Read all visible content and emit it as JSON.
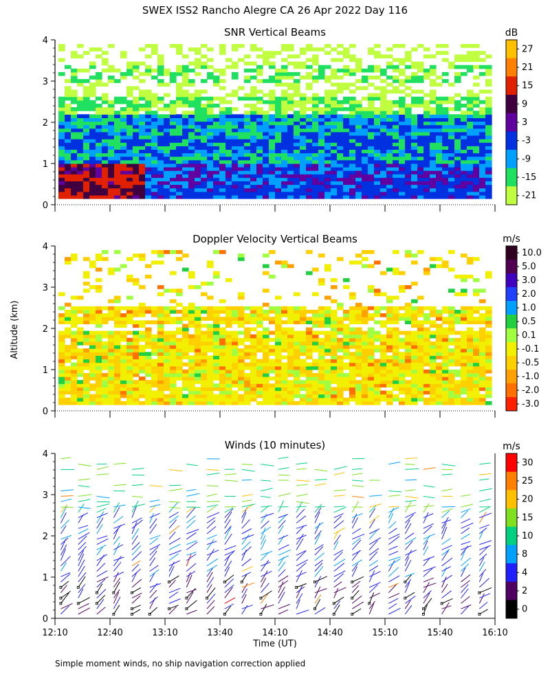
{
  "title": "SWEX ISS2 Rancho Alegre CA  26 Apr 2022 Day 116",
  "ylabel": "Altitude (km)",
  "xlabel": "Time (UT)",
  "footnote": "Simple moment winds, no ship navigation correction applied",
  "chart_data": [
    {
      "type": "heatmap",
      "title": "SNR Vertical Beams",
      "colorbar_unit": "dB",
      "colorbar_labels": [
        "27",
        "21",
        "15",
        "9",
        "3",
        "-3",
        "-9",
        "-15",
        "-21"
      ],
      "colors": [
        "#ffc000",
        "#ff8000",
        "#e02000",
        "#400040",
        "#6000a0",
        "#0030e0",
        "#00a0ff",
        "#20e060",
        "#c0ff40"
      ],
      "ylim": [
        0,
        4
      ],
      "y_ticks": [
        "0",
        "1",
        "2",
        "3",
        "4"
      ]
    },
    {
      "type": "heatmap",
      "title": "Doppler Velocity Vertical Beams",
      "colorbar_unit": "m/s",
      "colorbar_labels": [
        "10.0",
        "5.0",
        "3.0",
        "2.0",
        "1.0",
        "0.5",
        "0.1",
        "-0.1",
        "-0.5",
        "-1.0",
        "-2.0",
        "-3.0"
      ],
      "colors": [
        "#300020",
        "#500050",
        "#4000c0",
        "#2040ff",
        "#00a0ff",
        "#20d040",
        "#a0ff40",
        "#f0f000",
        "#ffd000",
        "#ffa000",
        "#ff7000",
        "#ff2000"
      ],
      "ylim": [
        0,
        4
      ],
      "y_ticks": [
        "0",
        "1",
        "2",
        "3",
        "4"
      ]
    },
    {
      "type": "scatter",
      "title": "Winds (10 minutes)",
      "colorbar_unit": "m/s",
      "colorbar_labels": [
        "30",
        "25",
        "20",
        "15",
        "10",
        "8",
        "4",
        "2",
        "0"
      ],
      "colors": [
        "#ff0000",
        "#ff8000",
        "#ffc000",
        "#80e020",
        "#00d080",
        "#00a0ff",
        "#2020ff",
        "#500060",
        "#000000"
      ],
      "ylim": [
        0,
        4
      ],
      "y_ticks": [
        "0",
        "1",
        "2",
        "3",
        "4"
      ],
      "x_ticks": [
        "12:10",
        "12:40",
        "13:10",
        "13:40",
        "14:10",
        "14:40",
        "15:10",
        "15:40",
        "16:10"
      ],
      "xlim_hours": [
        12.1667,
        16.1667
      ]
    }
  ]
}
